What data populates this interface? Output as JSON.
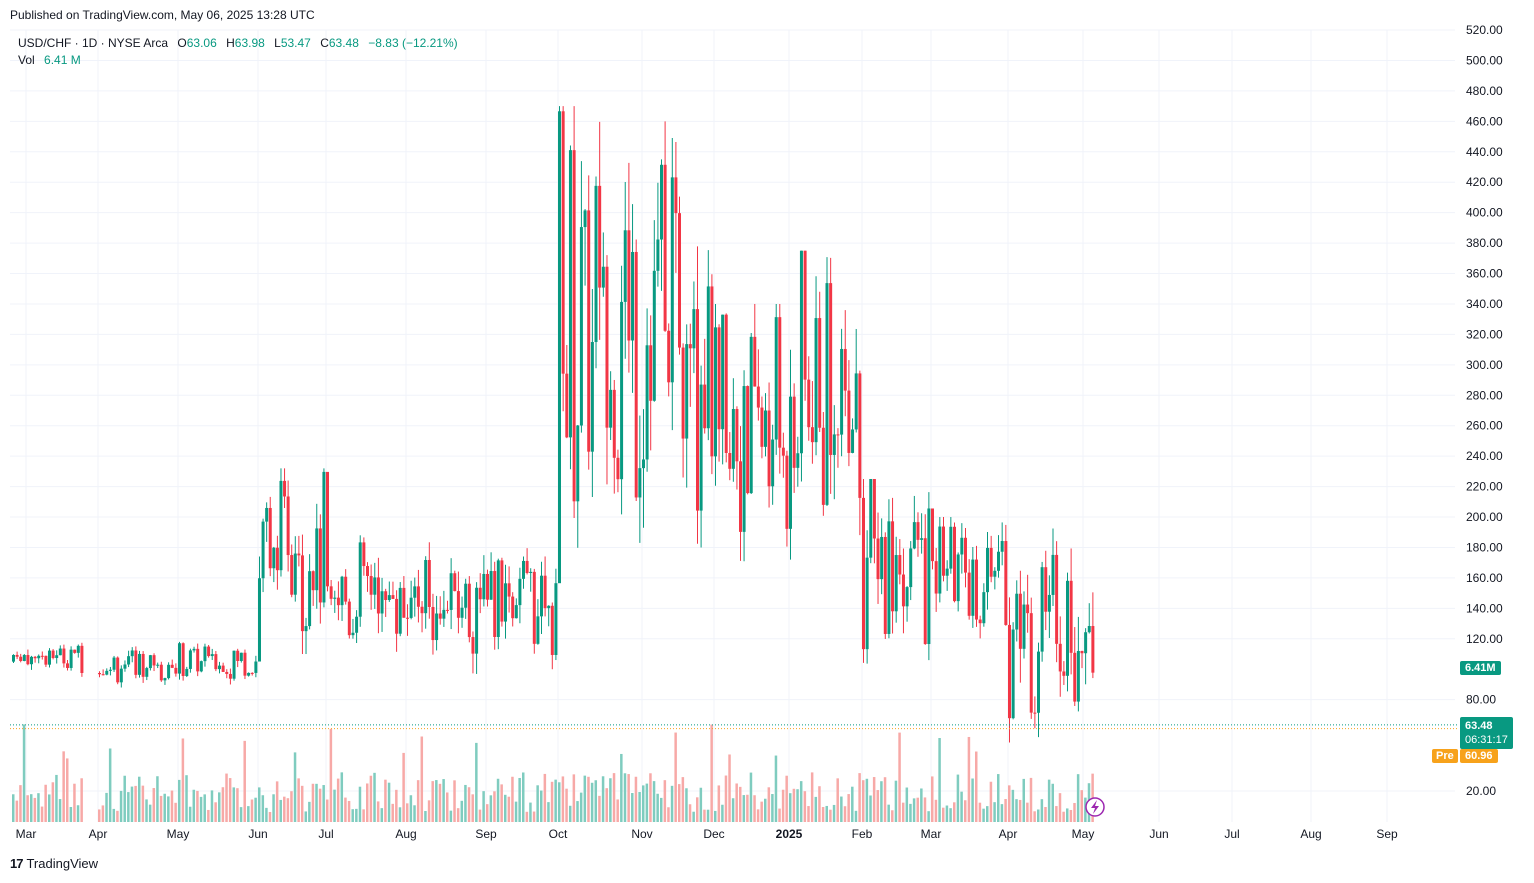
{
  "header": {
    "published": "Published on TradingView.com, May 06, 2025 13:28 UTC"
  },
  "legend": {
    "symbol": "USD/CHF · 1D · NYSE Arca",
    "open_label": "O",
    "open": "63.06",
    "high_label": "H",
    "high": "63.98",
    "low_label": "L",
    "low": "53.47",
    "close_label": "C",
    "close": "63.48",
    "change": "−8.83 (−12.21%)",
    "vol_label": "Vol",
    "vol": "6.41 M"
  },
  "tags": {
    "volume": "6.41M",
    "price": "63.48",
    "countdown": "06:31:17",
    "pre_label": "Pre",
    "pre_price": "60.96"
  },
  "footer": {
    "brand": "TradingView",
    "logo_text": "17"
  },
  "colors": {
    "up": "#089981",
    "down": "#f23645",
    "up_volume": "#7fccbf",
    "down_volume": "#f7a9a7",
    "pre": "#f7a21b",
    "grid": "#f0f3fa"
  },
  "chart_data": {
    "type": "candlestick",
    "y_axis_ticks": [
      "520.00",
      "500.00",
      "480.00",
      "460.00",
      "440.00",
      "420.00",
      "400.00",
      "380.00",
      "360.00",
      "340.00",
      "320.00",
      "300.00",
      "280.00",
      "260.00",
      "240.00",
      "220.00",
      "200.00",
      "180.00",
      "160.00",
      "140.00",
      "120.00",
      "80.00",
      "20.00"
    ],
    "ylim": [
      0,
      520
    ],
    "x_axis_ticks": [
      "Mar",
      "Apr",
      "May",
      "Jun",
      "Jul",
      "Aug",
      "Sep",
      "Oct",
      "Nov",
      "Dec",
      "2025",
      "Feb",
      "Mar",
      "Apr",
      "May",
      "Jun",
      "Jul",
      "Aug",
      "Sep"
    ],
    "grid": true,
    "last_close": 63.48,
    "pre_market": 60.96,
    "segments": [
      {
        "start": "Mar",
        "end": "Apr",
        "low": 95,
        "high": 120
      },
      {
        "start": "Apr",
        "end": "May",
        "low": 88,
        "high": 115
      },
      {
        "start": "May",
        "end": "Jun",
        "low": 90,
        "high": 118
      },
      {
        "start": "Jun",
        "end": "Jul",
        "low": 110,
        "high": 232
      },
      {
        "start": "Jul",
        "end": "Aug",
        "low": 100,
        "high": 188
      },
      {
        "start": "Aug",
        "end": "Sep",
        "low": 95,
        "high": 185
      },
      {
        "start": "Sep",
        "end": "Oct",
        "low": 100,
        "high": 185
      },
      {
        "start": "Oct",
        "end": "Nov",
        "low": 170,
        "high": 470
      },
      {
        "start": "Nov",
        "end": "Dec",
        "low": 180,
        "high": 460
      },
      {
        "start": "Dec",
        "end": "2025",
        "low": 155,
        "high": 340
      },
      {
        "start": "2025",
        "end": "Feb",
        "low": 165,
        "high": 375
      },
      {
        "start": "Feb",
        "end": "Mar",
        "low": 100,
        "high": 225
      },
      {
        "start": "Mar",
        "end": "Apr",
        "low": 115,
        "high": 200
      },
      {
        "start": "Apr",
        "end": "May",
        "low": 50,
        "high": 200
      }
    ]
  }
}
